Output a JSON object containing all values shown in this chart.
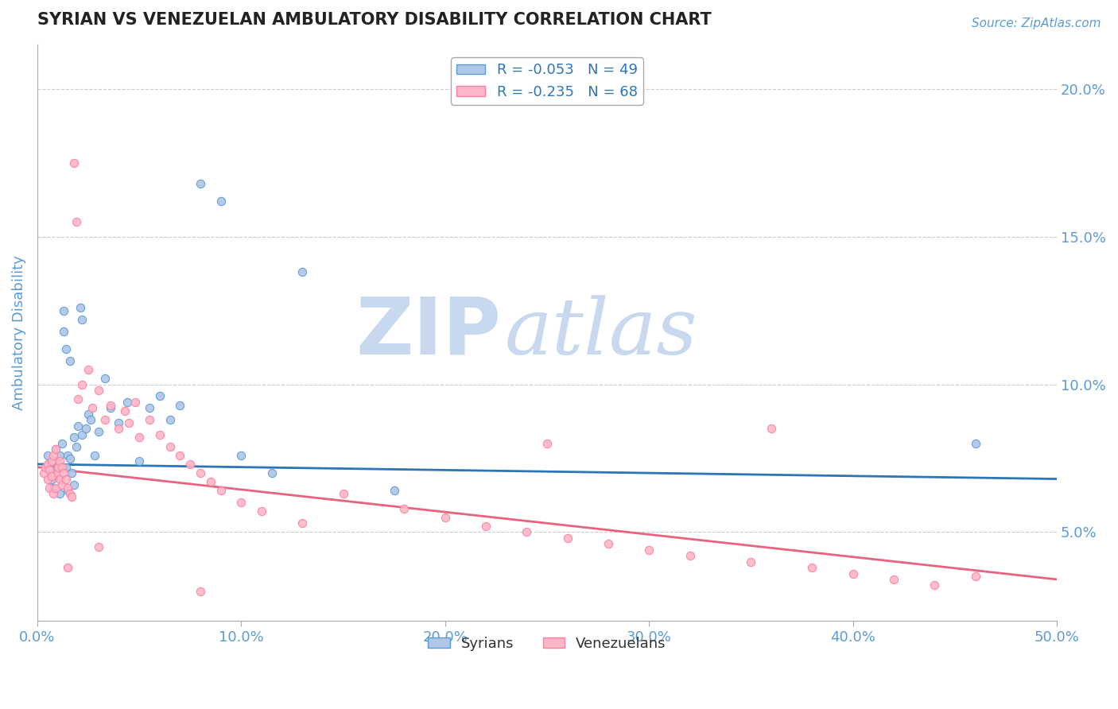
{
  "title": "SYRIAN VS VENEZUELAN AMBULATORY DISABILITY CORRELATION CHART",
  "source_text": "Source: ZipAtlas.com",
  "ylabel": "Ambulatory Disability",
  "xlim": [
    0.0,
    0.5
  ],
  "ylim": [
    0.02,
    0.215
  ],
  "xticklabels": [
    "0.0%",
    "10.0%",
    "20.0%",
    "30.0%",
    "40.0%",
    "50.0%"
  ],
  "xtick_vals": [
    0.0,
    0.1,
    0.2,
    0.3,
    0.4,
    0.5
  ],
  "yticks_right": [
    0.05,
    0.1,
    0.15,
    0.2
  ],
  "yticklabels_right": [
    "5.0%",
    "10.0%",
    "15.0%",
    "20.0%"
  ],
  "legend_label_syrian": "R = -0.053   N = 49",
  "legend_label_venezuelan": "R = -0.235   N = 68",
  "legend_bottom_syrian": "Syrians",
  "legend_bottom_venezuelan": "Venezuelans",
  "color_syrian_fill": "#AEC6E8",
  "color_syrian_edge": "#5B9BD5",
  "color_venezuelan_fill": "#FFB6C8",
  "color_venezuelan_edge": "#FF7F9F",
  "color_trend_syrian": "#2E75B6",
  "color_trend_venezuelan": "#E8637D",
  "color_axis": "#5B9BD5",
  "color_label": "#5B9BD5",
  "watermark_zip": "ZIP",
  "watermark_atlas": "atlas",
  "watermark_color": "#C8D8EE",
  "sy_trend": [
    0.073,
    0.068
  ],
  "vy_trend": [
    0.072,
    0.034
  ],
  "syrians_x": [
    0.005,
    0.006,
    0.007,
    0.008,
    0.008,
    0.009,
    0.009,
    0.01,
    0.01,
    0.011,
    0.011,
    0.012,
    0.013,
    0.013,
    0.014,
    0.014,
    0.015,
    0.015,
    0.016,
    0.016,
    0.017,
    0.018,
    0.018,
    0.019,
    0.02,
    0.021,
    0.022,
    0.022,
    0.024,
    0.025,
    0.026,
    0.028,
    0.03,
    0.033,
    0.036,
    0.04,
    0.044,
    0.05,
    0.055,
    0.06,
    0.065,
    0.07,
    0.08,
    0.09,
    0.1,
    0.115,
    0.13,
    0.175,
    0.46
  ],
  "syrians_y": [
    0.076,
    0.072,
    0.068,
    0.074,
    0.065,
    0.078,
    0.071,
    0.073,
    0.069,
    0.076,
    0.063,
    0.08,
    0.125,
    0.118,
    0.112,
    0.072,
    0.076,
    0.064,
    0.108,
    0.075,
    0.07,
    0.082,
    0.066,
    0.079,
    0.086,
    0.126,
    0.122,
    0.083,
    0.085,
    0.09,
    0.088,
    0.076,
    0.084,
    0.102,
    0.092,
    0.087,
    0.094,
    0.074,
    0.092,
    0.096,
    0.088,
    0.093,
    0.168,
    0.162,
    0.076,
    0.07,
    0.138,
    0.064,
    0.08
  ],
  "venezuelans_x": [
    0.003,
    0.004,
    0.005,
    0.005,
    0.006,
    0.006,
    0.007,
    0.007,
    0.008,
    0.008,
    0.009,
    0.009,
    0.01,
    0.01,
    0.011,
    0.011,
    0.012,
    0.012,
    0.013,
    0.014,
    0.015,
    0.016,
    0.017,
    0.018,
    0.019,
    0.02,
    0.022,
    0.025,
    0.027,
    0.03,
    0.033,
    0.036,
    0.04,
    0.043,
    0.045,
    0.048,
    0.05,
    0.055,
    0.06,
    0.065,
    0.07,
    0.075,
    0.08,
    0.085,
    0.09,
    0.1,
    0.11,
    0.13,
    0.15,
    0.18,
    0.2,
    0.22,
    0.24,
    0.26,
    0.28,
    0.3,
    0.32,
    0.35,
    0.38,
    0.4,
    0.42,
    0.44,
    0.46,
    0.36,
    0.25,
    0.08,
    0.03,
    0.015
  ],
  "venezuelans_y": [
    0.07,
    0.072,
    0.068,
    0.073,
    0.065,
    0.071,
    0.074,
    0.069,
    0.076,
    0.063,
    0.078,
    0.065,
    0.07,
    0.072,
    0.068,
    0.074,
    0.066,
    0.072,
    0.07,
    0.068,
    0.065,
    0.063,
    0.062,
    0.175,
    0.155,
    0.095,
    0.1,
    0.105,
    0.092,
    0.098,
    0.088,
    0.093,
    0.085,
    0.091,
    0.087,
    0.094,
    0.082,
    0.088,
    0.083,
    0.079,
    0.076,
    0.073,
    0.07,
    0.067,
    0.064,
    0.06,
    0.057,
    0.053,
    0.063,
    0.058,
    0.055,
    0.052,
    0.05,
    0.048,
    0.046,
    0.044,
    0.042,
    0.04,
    0.038,
    0.036,
    0.034,
    0.032,
    0.035,
    0.085,
    0.08,
    0.03,
    0.045,
    0.038
  ],
  "background_color": "#FFFFFF",
  "grid_color": "#CCCCCC"
}
